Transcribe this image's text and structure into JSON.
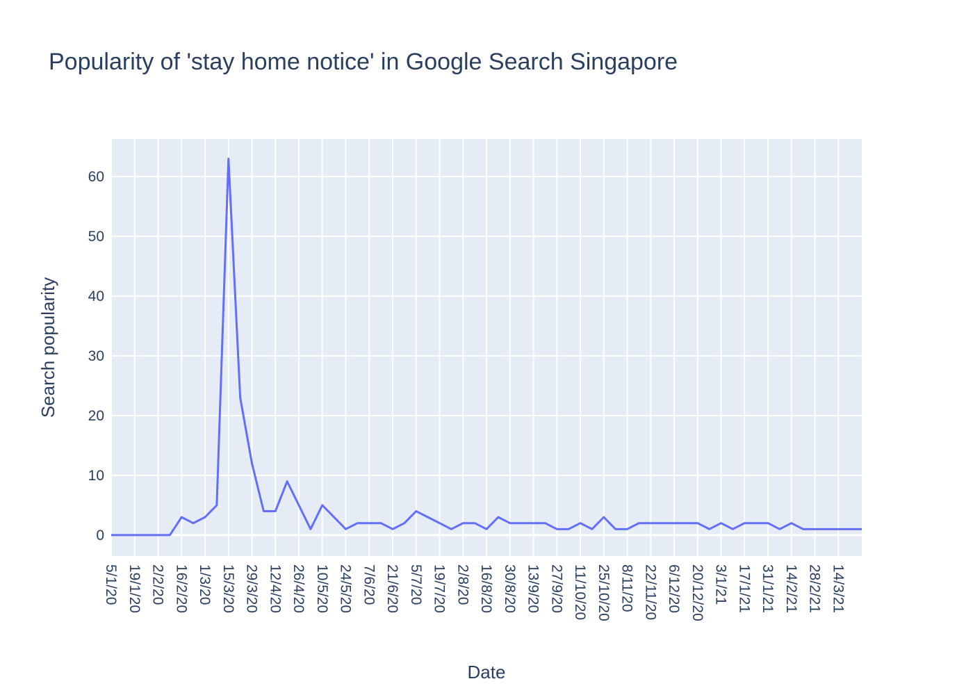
{
  "chart_data": {
    "type": "line",
    "title": "Popularity of 'stay home notice' in Google Search Singapore",
    "xlabel": "Date",
    "ylabel": "Search popularity",
    "ylim": [
      -3.5,
      66.3
    ],
    "y_ticks": [
      0,
      10,
      20,
      30,
      40,
      50,
      60
    ],
    "grid": true,
    "x_tick_labels": [
      "5/1/20",
      "19/1/20",
      "2/2/20",
      "16/2/20",
      "1/3/20",
      "15/3/20",
      "29/3/20",
      "12/4/20",
      "26/4/20",
      "10/5/20",
      "24/5/20",
      "7/6/20",
      "21/6/20",
      "5/7/20",
      "19/7/20",
      "2/8/20",
      "16/8/20",
      "30/8/20",
      "13/9/20",
      "27/9/20",
      "11/10/20",
      "25/10/20",
      "8/11/20",
      "22/11/20",
      "6/12/20",
      "20/12/20",
      "3/1/21",
      "17/1/21",
      "31/1/21",
      "14/2/21",
      "28/2/21",
      "14/3/21"
    ],
    "series": [
      {
        "color": "#636efa",
        "x": [
          "5/1/20",
          "12/1/20",
          "19/1/20",
          "26/1/20",
          "2/2/20",
          "9/2/20",
          "16/2/20",
          "23/2/20",
          "1/3/20",
          "8/3/20",
          "15/3/20",
          "22/3/20",
          "29/3/20",
          "5/4/20",
          "12/4/20",
          "19/4/20",
          "26/4/20",
          "3/5/20",
          "10/5/20",
          "17/5/20",
          "24/5/20",
          "31/5/20",
          "7/6/20",
          "14/6/20",
          "21/6/20",
          "28/6/20",
          "5/7/20",
          "12/7/20",
          "19/7/20",
          "26/7/20",
          "2/8/20",
          "9/8/20",
          "16/8/20",
          "23/8/20",
          "30/8/20",
          "6/9/20",
          "13/9/20",
          "20/9/20",
          "27/9/20",
          "4/10/20",
          "11/10/20",
          "18/10/20",
          "25/10/20",
          "1/11/20",
          "8/11/20",
          "15/11/20",
          "22/11/20",
          "29/11/20",
          "6/12/20",
          "13/12/20",
          "20/12/20",
          "27/12/20",
          "3/1/21",
          "10/1/21",
          "17/1/21",
          "24/1/21",
          "31/1/21",
          "7/2/21",
          "14/2/21",
          "21/2/21",
          "28/2/21",
          "7/3/21",
          "14/3/21",
          "21/3/21",
          "28/3/21"
        ],
        "y": [
          0,
          0,
          0,
          0,
          0,
          0,
          3,
          2,
          3,
          5,
          63,
          23,
          12,
          4,
          4,
          9,
          5,
          1,
          5,
          3,
          1,
          2,
          2,
          2,
          1,
          2,
          4,
          3,
          2,
          1,
          2,
          2,
          1,
          3,
          2,
          2,
          2,
          2,
          1,
          1,
          2,
          1,
          3,
          1,
          1,
          2,
          2,
          2,
          2,
          2,
          2,
          1,
          2,
          1,
          2,
          2,
          2,
          1,
          2,
          1,
          1,
          1,
          1,
          1,
          1
        ]
      }
    ]
  }
}
